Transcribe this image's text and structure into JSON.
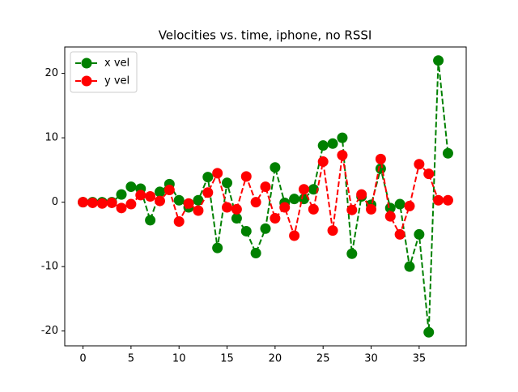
{
  "chart_data": {
    "type": "line",
    "title": "Velocities vs. time, iphone, no RSSI",
    "x": [
      0,
      1,
      2,
      3,
      4,
      5,
      6,
      7,
      8,
      9,
      10,
      11,
      12,
      13,
      14,
      15,
      16,
      17,
      18,
      19,
      20,
      21,
      22,
      23,
      24,
      25,
      26,
      27,
      28,
      29,
      30,
      31,
      32,
      33,
      34,
      35,
      36,
      37,
      38
    ],
    "series": [
      {
        "name": "x vel",
        "color": "#008000",
        "values": [
          0,
          0,
          0,
          0,
          1.2,
          2.4,
          2.1,
          -2.8,
          1.6,
          2.8,
          0.3,
          -0.8,
          0.3,
          3.9,
          -7.1,
          3.0,
          -2.5,
          -4.5,
          -7.9,
          -4.1,
          5.4,
          -0.1,
          0.5,
          0.5,
          2.0,
          8.8,
          9.1,
          10,
          -8,
          0.9,
          -0.4,
          5.2,
          -0.9,
          -0.3,
          -10,
          -5,
          -20.2,
          22,
          7.6
        ]
      },
      {
        "name": "y vel",
        "color": "#ff0000",
        "values": [
          0,
          -0.1,
          -0.2,
          -0.1,
          -0.9,
          -0.3,
          1.1,
          0.9,
          0.2,
          1.9,
          -3,
          -0.2,
          -1.3,
          1.5,
          4.5,
          -0.8,
          -1.1,
          4.0,
          0,
          2.4,
          -2.5,
          -0.8,
          -5.2,
          2.0,
          -1.1,
          6.3,
          -4.4,
          7.3,
          -1.2,
          1.2,
          -1.1,
          6.7,
          -2.2,
          -5.0,
          -0.6,
          5.9,
          4.4,
          0.3,
          0.3
        ]
      }
    ],
    "xlim": [
      -1.9,
      39.9
    ],
    "xticks": [
      0,
      5,
      10,
      15,
      20,
      25,
      30,
      35
    ],
    "ylim": [
      -22.3,
      24.1
    ],
    "yticks": [
      -20,
      -10,
      0,
      10,
      20
    ],
    "legend": "upper left",
    "line_style": "dashed",
    "marker": "circle"
  }
}
